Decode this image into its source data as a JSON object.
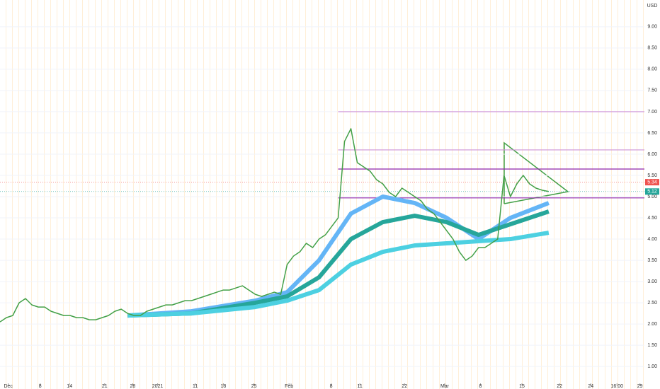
{
  "chart_data": {
    "type": "line",
    "currency": "USD",
    "color": "#43a047",
    "x": [
      0,
      1,
      2,
      3,
      4,
      5,
      6,
      7,
      8,
      9,
      10,
      11,
      12,
      13,
      14,
      15,
      16,
      17,
      18,
      19,
      20,
      21,
      22,
      23,
      24,
      25,
      26,
      27,
      28,
      29,
      30,
      31,
      32,
      33,
      34,
      35,
      36,
      37,
      38,
      39,
      40,
      41,
      42,
      43,
      44,
      45,
      46,
      47,
      48,
      49,
      50,
      51,
      52,
      53,
      54,
      55,
      56,
      57,
      58,
      59,
      60,
      61,
      62,
      63,
      64,
      65,
      66,
      67,
      68,
      69,
      70,
      71,
      72,
      73,
      74,
      75,
      76,
      77,
      78,
      79,
      80,
      81,
      82,
      83,
      84,
      85,
      86
    ],
    "values": [
      2.05,
      2.15,
      2.2,
      2.5,
      2.6,
      2.45,
      2.4,
      2.4,
      2.3,
      2.25,
      2.2,
      2.2,
      2.15,
      2.15,
      2.1,
      2.1,
      2.15,
      2.2,
      2.3,
      2.35,
      2.25,
      2.2,
      2.2,
      2.3,
      2.35,
      2.4,
      2.45,
      2.45,
      2.5,
      2.55,
      2.55,
      2.6,
      2.65,
      2.7,
      2.75,
      2.8,
      2.8,
      2.85,
      2.9,
      2.8,
      2.7,
      2.65,
      2.7,
      2.75,
      2.7,
      3.4,
      3.6,
      3.7,
      3.9,
      3.8,
      4.0,
      4.1,
      4.3,
      4.5,
      6.3,
      6.6,
      5.8,
      5.7,
      5.6,
      5.4,
      5.3,
      5.1,
      5.0,
      5.2,
      5.1,
      5.0,
      4.9,
      4.7,
      4.6,
      4.4,
      4.2,
      4.0,
      3.7,
      3.5,
      3.6,
      3.8,
      3.8,
      3.9,
      4.0,
      5.5,
      5.0,
      5.3,
      5.5,
      5.3,
      5.2,
      5.15,
      5.12
    ],
    "series": [
      {
        "color": "#64b5f6",
        "x": [
          20,
          30,
          40,
          45,
          50,
          55,
          60,
          65,
          70,
          75,
          80,
          86
        ],
        "values": [
          2.2,
          2.3,
          2.55,
          2.75,
          3.5,
          4.6,
          5.0,
          4.85,
          4.5,
          4.0,
          4.5,
          4.85
        ]
      },
      {
        "color": "#26a69a",
        "x": [
          20,
          30,
          40,
          45,
          50,
          55,
          60,
          65,
          70,
          75,
          80,
          86
        ],
        "values": [
          2.2,
          2.25,
          2.5,
          2.65,
          3.1,
          4.0,
          4.4,
          4.55,
          4.4,
          4.1,
          4.35,
          4.65
        ]
      },
      {
        "color": "#4dd0e1",
        "x": [
          20,
          30,
          40,
          45,
          50,
          55,
          60,
          65,
          70,
          75,
          80,
          86
        ],
        "values": [
          2.2,
          2.25,
          2.4,
          2.55,
          2.8,
          3.4,
          3.7,
          3.85,
          3.9,
          3.95,
          4.0,
          4.15
        ]
      }
    ],
    "levels": [
      {
        "value": 7.0,
        "color": "#ce93d8"
      },
      {
        "value": 6.1,
        "color": "#ce93d8"
      },
      {
        "value": 5.65,
        "color": "#8e24aa"
      },
      {
        "value": 4.97,
        "color": "#8e24aa"
      }
    ],
    "last_prices": [
      {
        "value": 5.34,
        "color": "#ef5350"
      },
      {
        "value": 5.12,
        "color": "#26a69a"
      }
    ],
    "xlim": [
      0,
      101
    ],
    "ylim": [
      0.47,
      9.63
    ],
    "yticks": [
      {
        "value": 1,
        "label": "1.00"
      },
      {
        "value": 1.5,
        "label": "1.50"
      },
      {
        "value": 2,
        "label": "2.00"
      },
      {
        "value": 2.5,
        "label": "2.50"
      },
      {
        "value": 3,
        "label": "3.00"
      },
      {
        "value": 3.5,
        "label": "3.50"
      },
      {
        "value": 4,
        "label": "4.00"
      },
      {
        "value": 4.5,
        "label": "4.50"
      },
      {
        "value": 5,
        "label": "5.00"
      },
      {
        "value": 5.5,
        "label": "5.50"
      },
      {
        "value": 6,
        "label": "6.00"
      },
      {
        "value": 6.5,
        "label": "6.50"
      },
      {
        "value": 7,
        "label": "7.00"
      },
      {
        "value": 7.5,
        "label": "7.50"
      },
      {
        "value": 8,
        "label": "8.00"
      },
      {
        "value": 8.5,
        "label": "8.50"
      },
      {
        "value": 9,
        "label": "9.00"
      }
    ],
    "xticks": [
      {
        "value": 1.3,
        "label": "Dec"
      },
      {
        "value": 6.3,
        "label": "8"
      },
      {
        "value": 10.9,
        "label": "14"
      },
      {
        "value": 16.4,
        "label": "21"
      },
      {
        "value": 20.8,
        "label": "28"
      },
      {
        "value": 24.7,
        "label": "2021"
      },
      {
        "value": 30.6,
        "label": "11"
      },
      {
        "value": 35,
        "label": "18"
      },
      {
        "value": 39.8,
        "label": "25"
      },
      {
        "value": 45.3,
        "label": "Feb"
      },
      {
        "value": 51.9,
        "label": "8"
      },
      {
        "value": 56.4,
        "label": "11"
      },
      {
        "value": 63.4,
        "label": "22"
      },
      {
        "value": 69.7,
        "label": "Mar"
      },
      {
        "value": 75.3,
        "label": "8"
      },
      {
        "value": 81.8,
        "label": "15"
      },
      {
        "value": 87.7,
        "label": "22"
      },
      {
        "value": 92.6,
        "label": "24"
      },
      {
        "value": 96.7,
        "label": "16:00"
      },
      {
        "value": 100.3,
        "label": "29"
      }
    ]
  }
}
